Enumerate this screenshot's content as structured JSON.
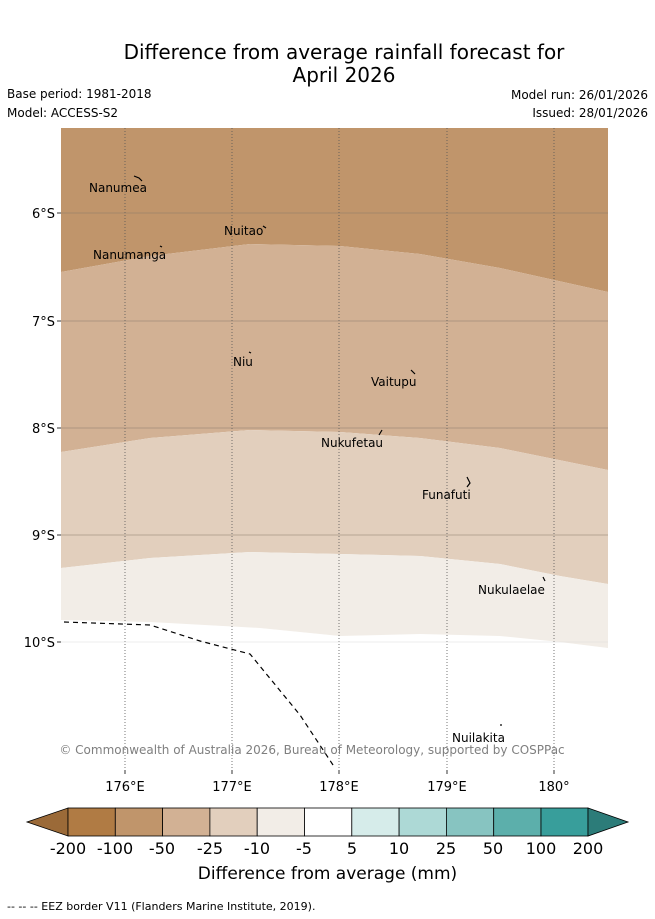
{
  "title_line1": "Difference from average rainfall forecast for",
  "title_line2": "April 2026",
  "base_period": "Base period: 1981-2018",
  "model": "Model: ACCESS-S2",
  "model_run": "Model run: 26/01/2026",
  "issued": "Issued: 28/01/2026",
  "axes": {
    "lat_ticks": [
      "6°S",
      "7°S",
      "8°S",
      "9°S",
      "10°S"
    ],
    "lon_ticks": [
      "176°E",
      "177°E",
      "178°E",
      "179°E",
      "180°"
    ]
  },
  "places": [
    "Nanumea",
    "Nuitao",
    "Nanumanga",
    "Niu",
    "Vaitupu",
    "Nukufetau",
    "Funafuti",
    "Nukulaelae",
    "Nuilakita"
  ],
  "copyright": "© Commonwealth of Australia 2026, Bureau of Meteorology, supported by COSPPac",
  "colorbar": {
    "labels": [
      "-200",
      "-100",
      "-50",
      "-25",
      "-10",
      "-5",
      "5",
      "10",
      "25",
      "50",
      "100",
      "200"
    ],
    "colors": [
      "#9b6a38",
      "#b07b44",
      "#c0956b",
      "#d2b194",
      "#e2cfbd",
      "#f2ede7",
      "#ffffff",
      "#d6ecea",
      "#add9d6",
      "#87c4c1",
      "#5cafab",
      "#389e9b",
      "#2c7c79"
    ],
    "title": "Difference from average (mm)"
  },
  "footnote": "-- -- -- EEZ border V11 (Flanders Marine Institute, 2019)."
}
